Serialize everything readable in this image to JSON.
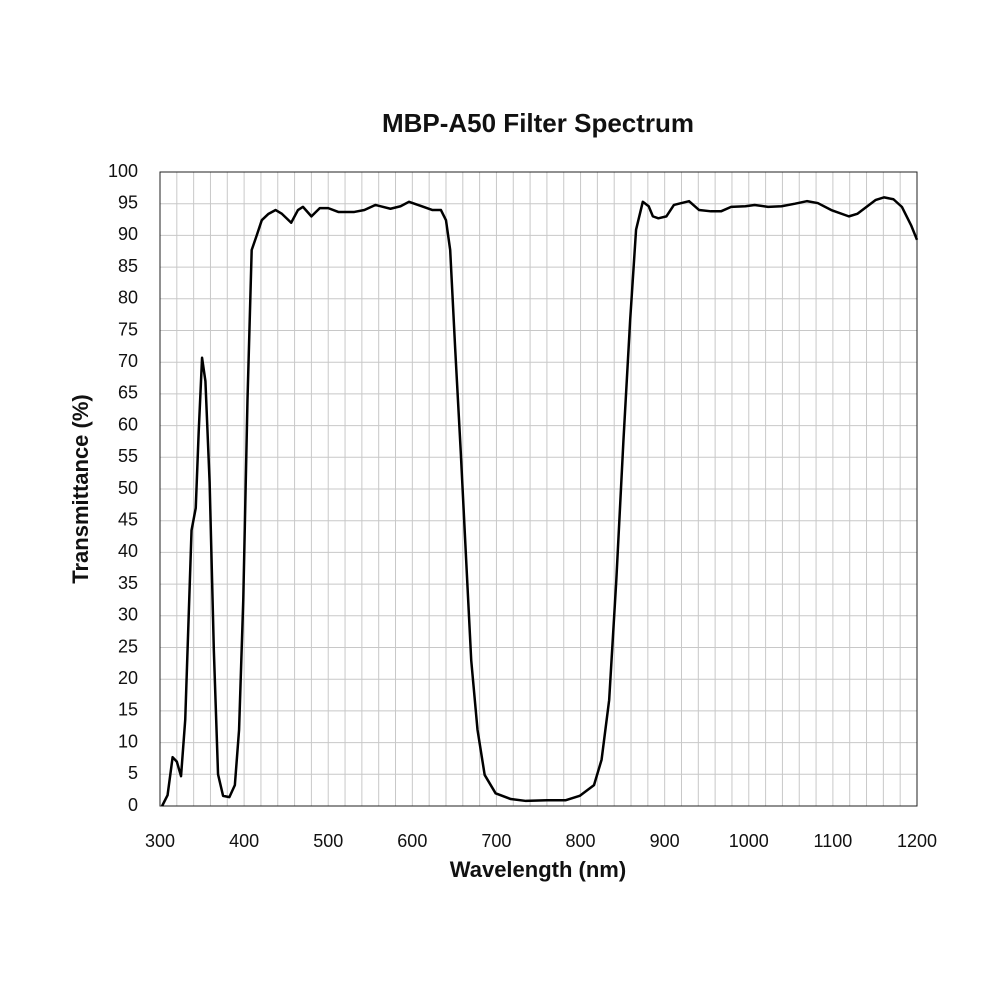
{
  "chart_data": {
    "type": "line",
    "title": "MBP-A50 Filter Spectrum",
    "x_label": "Wavelength (nm)",
    "y_label": "Transmittance (%)",
    "xlim": [
      300,
      1200
    ],
    "xticks": [
      300,
      400,
      500,
      600,
      700,
      800,
      900,
      1000,
      1100,
      1200
    ],
    "ylim": [
      0,
      100
    ],
    "yticks": [
      0,
      5,
      10,
      15,
      20,
      25,
      30,
      35,
      40,
      45,
      50,
      55,
      60,
      65,
      70,
      75,
      80,
      85,
      90,
      95,
      100
    ],
    "grid": true,
    "series": [
      {
        "color": "#000000",
        "x": [
          302.5,
          309,
          315,
          320,
          325,
          330,
          337.5,
          342.5,
          346,
          350,
          354,
          359,
          364,
          369,
          375,
          382.5,
          389,
          394,
          399,
          404,
          409,
          415,
          421,
          429,
          437.5,
          445,
          456,
          464,
          470,
          480,
          490,
          500,
          512,
          531,
          543,
          556,
          574,
          586,
          596,
          611,
          624,
          634,
          640,
          645,
          651,
          657.5,
          664,
          670,
          677.5,
          686,
          699,
          717,
          735,
          760,
          782,
          799,
          816,
          825,
          834,
          842.5,
          851,
          859,
          866,
          874,
          881,
          886,
          892.5,
          902,
          911,
          920,
          929,
          941,
          955,
          967,
          979,
          996,
          1007,
          1023,
          1039,
          1055,
          1069,
          1082,
          1098,
          1119,
          1129,
          1140,
          1151,
          1161,
          1172,
          1182,
          1193,
          1200
        ],
        "values": [
          0,
          1.7,
          7.7,
          7,
          4.7,
          13.6,
          43.5,
          47,
          59,
          70.7,
          67,
          51,
          24.6,
          5,
          1.6,
          1.4,
          3.3,
          12,
          32.5,
          64,
          87.7,
          90,
          92.4,
          93.4,
          94,
          93.4,
          92,
          94,
          94.5,
          93,
          94.3,
          94.3,
          93.7,
          93.7,
          94,
          94.8,
          94.2,
          94.6,
          95.3,
          94.6,
          94,
          94,
          92.4,
          87.7,
          72,
          56,
          38.8,
          23,
          12,
          4.9,
          2,
          1.1,
          0.8,
          0.9,
          0.9,
          1.6,
          3.3,
          7.3,
          16.7,
          35.6,
          57.7,
          76.7,
          90.9,
          95.3,
          94.6,
          93,
          92.7,
          93,
          94.8,
          95.1,
          95.4,
          94,
          93.8,
          93.8,
          94.5,
          94.6,
          94.8,
          94.5,
          94.6,
          95,
          95.4,
          95.1,
          94,
          93,
          93.4,
          94.5,
          95.6,
          96,
          95.7,
          94.5,
          91.6,
          89.3
        ]
      }
    ]
  }
}
